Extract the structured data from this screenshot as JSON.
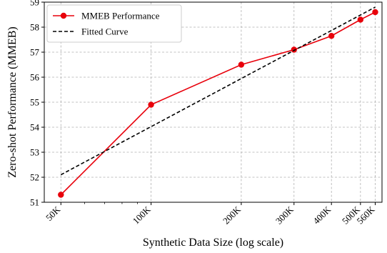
{
  "chart_data": {
    "type": "line",
    "xlabel": "Synthetic Data Size (log scale)",
    "ylabel": "Zero-shot Performance (MMEB)",
    "x_scale": "log",
    "xlim": [
      44000,
      590000
    ],
    "ylim": [
      51,
      59
    ],
    "grid": true,
    "legend_position": "top-left",
    "x_ticks": [
      {
        "value": 50000,
        "label": "50K"
      },
      {
        "value": 100000,
        "label": "100K"
      },
      {
        "value": 200000,
        "label": "200K"
      },
      {
        "value": 300000,
        "label": "300K"
      },
      {
        "value": 400000,
        "label": "400K"
      },
      {
        "value": 500000,
        "label": "500K"
      },
      {
        "value": 560000,
        "label": "560K"
      }
    ],
    "y_ticks": [
      51,
      52,
      53,
      54,
      55,
      56,
      57,
      58,
      59
    ],
    "series": [
      {
        "name": "MMEB Performance",
        "style": "solid-marker",
        "color": "#e8000b",
        "x": [
          50000,
          100000,
          200000,
          300000,
          400000,
          500000,
          560000
        ],
        "y": [
          51.3,
          54.9,
          56.5,
          57.1,
          57.65,
          58.3,
          58.6
        ]
      },
      {
        "name": "Fitted Curve",
        "style": "dashed",
        "color": "#000000",
        "x": [
          50000,
          560000
        ],
        "y": [
          52.1,
          58.8
        ]
      }
    ]
  }
}
